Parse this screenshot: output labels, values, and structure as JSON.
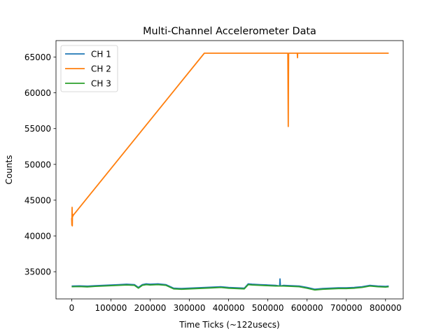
{
  "chart_data": {
    "type": "line",
    "title": "Multi-Channel Accelerometer Data",
    "xlabel": "Time Ticks (~122usecs)",
    "ylabel": "Counts",
    "xlim": [
      -40000,
      845000
    ],
    "ylim": [
      31200,
      67300
    ],
    "xticks": [
      0,
      100000,
      200000,
      300000,
      400000,
      500000,
      600000,
      700000,
      800000
    ],
    "yticks": [
      35000,
      40000,
      45000,
      50000,
      55000,
      60000,
      65000
    ],
    "grid": false,
    "legend_position": "upper-left",
    "series": [
      {
        "name": "CH 1",
        "color": "#1f77b4",
        "x": [
          0,
          20000,
          40000,
          60000,
          80000,
          100000,
          120000,
          140000,
          160000,
          170000,
          180000,
          190000,
          200000,
          220000,
          240000,
          260000,
          280000,
          300000,
          320000,
          340000,
          360000,
          380000,
          400000,
          420000,
          440000,
          450000,
          460000,
          480000,
          500000,
          520000,
          530000,
          531000,
          532000,
          540000,
          560000,
          580000,
          600000,
          620000,
          640000,
          660000,
          680000,
          700000,
          720000,
          740000,
          760000,
          780000,
          800000,
          808000
        ],
        "y": [
          33000,
          33020,
          32980,
          33050,
          33100,
          33150,
          33200,
          33250,
          33200,
          32800,
          33200,
          33300,
          33250,
          33300,
          33200,
          32700,
          32650,
          32700,
          32750,
          32800,
          32850,
          32900,
          32800,
          32750,
          32700,
          33300,
          33250,
          33200,
          33150,
          33100,
          33000,
          34000,
          33000,
          33100,
          33050,
          33000,
          32800,
          32550,
          32650,
          32700,
          32750,
          32750,
          32800,
          32900,
          33100,
          33000,
          32950,
          33000
        ]
      },
      {
        "name": "CH 2",
        "color": "#ff7f0e",
        "x": [
          0,
          500,
          1000,
          1500,
          2000,
          2500,
          3000,
          3500,
          4000,
          338000,
          400000,
          500000,
          551000,
          552000,
          553000,
          554000,
          575000,
          575500,
          576000,
          600000,
          700000,
          808000
        ],
        "y": [
          42500,
          41500,
          44000,
          41400,
          43000,
          42700,
          43000,
          42800,
          42900,
          65535,
          65535,
          65535,
          65535,
          55300,
          65535,
          65535,
          65535,
          64900,
          65535,
          65535,
          65535,
          65535
        ]
      },
      {
        "name": "CH 3",
        "color": "#2ca02c",
        "x": [
          0,
          20000,
          40000,
          60000,
          80000,
          100000,
          120000,
          140000,
          160000,
          170000,
          180000,
          190000,
          200000,
          220000,
          240000,
          260000,
          280000,
          300000,
          320000,
          340000,
          360000,
          380000,
          400000,
          420000,
          440000,
          450000,
          460000,
          480000,
          500000,
          520000,
          540000,
          560000,
          580000,
          600000,
          620000,
          640000,
          660000,
          680000,
          700000,
          720000,
          740000,
          760000,
          780000,
          800000,
          808000
        ],
        "y": [
          32900,
          32920,
          32880,
          32950,
          33000,
          33050,
          33100,
          33150,
          33100,
          32700,
          33100,
          33200,
          33150,
          33200,
          33100,
          32600,
          32550,
          32600,
          32650,
          32700,
          32750,
          32800,
          32700,
          32650,
          32600,
          33200,
          33150,
          33100,
          33050,
          33000,
          33000,
          32950,
          32900,
          32700,
          32450,
          32550,
          32600,
          32650,
          32650,
          32700,
          32800,
          33000,
          32900,
          32850,
          32900
        ]
      }
    ]
  }
}
